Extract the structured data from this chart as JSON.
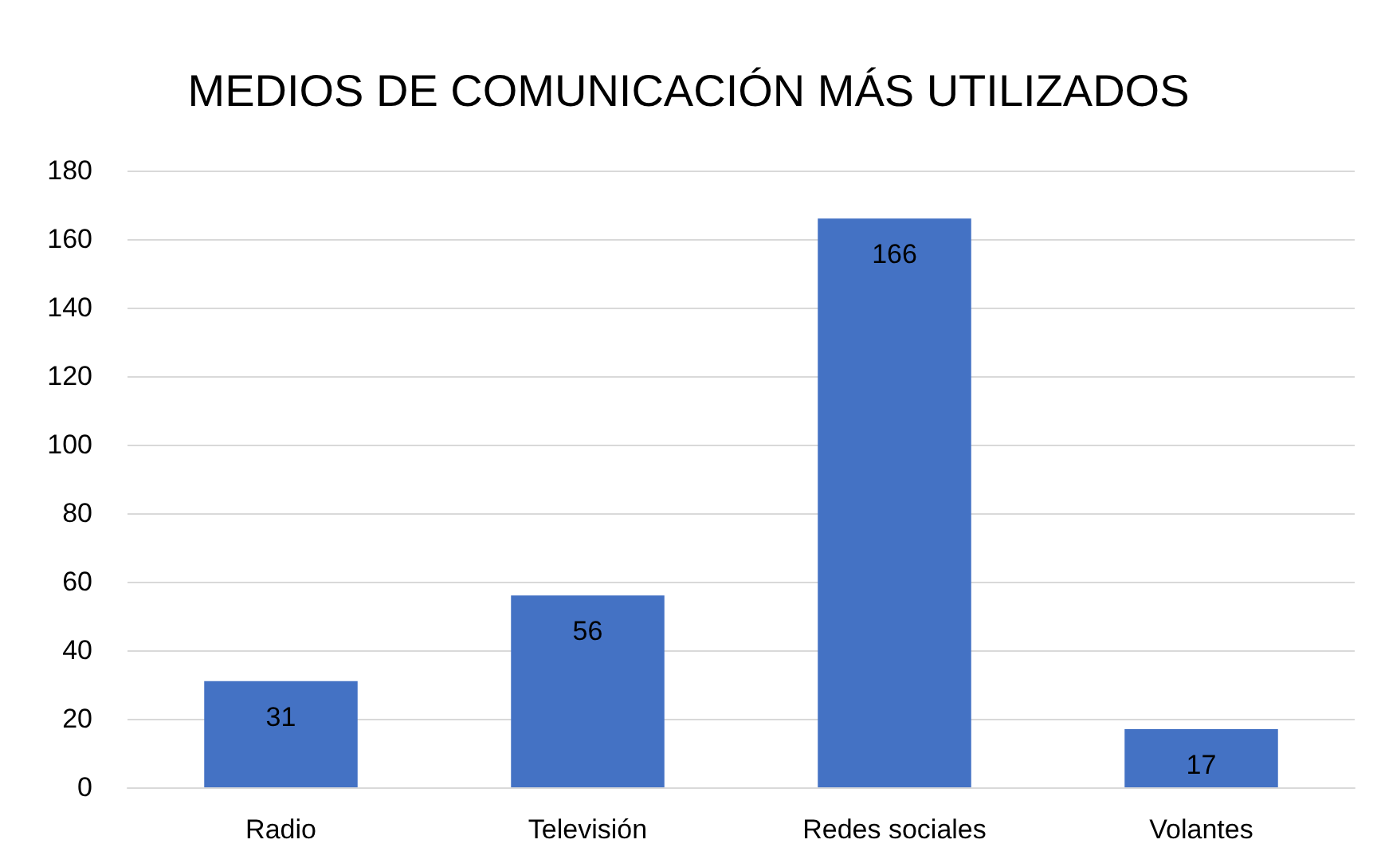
{
  "chart_data": {
    "type": "bar",
    "title": "MEDIOS DE COMUNICACIÓN MÁS UTILIZADOS",
    "categories": [
      "Radio",
      "Televisión",
      "Redes sociales",
      "Volantes"
    ],
    "values": [
      31,
      56,
      166,
      17
    ],
    "color": "#4472c4",
    "data_labels": true,
    "ylim": [
      0,
      180
    ],
    "yticks": [
      0,
      20,
      40,
      60,
      80,
      100,
      120,
      140,
      160,
      180
    ],
    "grid": "y"
  }
}
